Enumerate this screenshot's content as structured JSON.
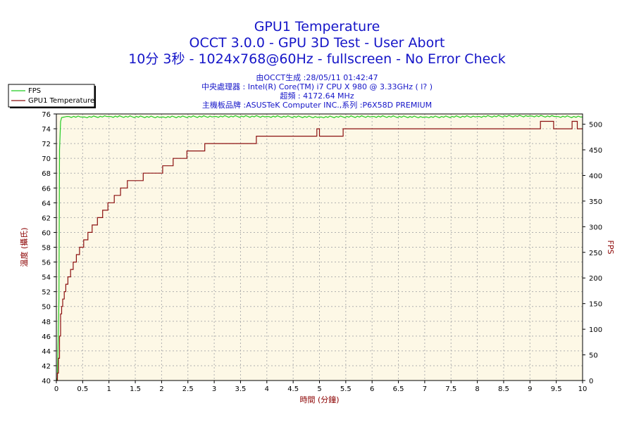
{
  "header": {
    "title": "GPU1 Temperature",
    "subtitle": "OCCT 3.0.0 - GPU 3D Test - User Abort",
    "subtitle2": "10分 3秒 - 1024x768@60Hz - fullscreen - No Error Check",
    "info_lines": [
      "由OCCT生成 :28/05/11 01:42:47",
      "中央處理器 : Intel(R) Core(TM) i7 CPU X 980 @ 3.33GHz (  l? )",
      "超頻 : 4172.64 MHz",
      "主機板品牌 :ASUSTeK Computer INC.,系列 :P6X58D PREMIUM"
    ]
  },
  "colors": {
    "fps": "#22cc22",
    "temperature": "#8b1010",
    "plot_bg": "#fdf8e6",
    "grid": "#b0b0b0",
    "title": "#1515c8"
  },
  "chart_data": {
    "type": "line",
    "xlabel": "時間 (分鐘)",
    "ylabel": "溫度 (攝氏)",
    "y2label": "FPS",
    "xlim": [
      0,
      10
    ],
    "ylim": [
      40,
      76
    ],
    "y2lim": [
      0,
      520
    ],
    "x_ticks": [
      "0",
      "0.5",
      "1",
      "1.5",
      "2",
      "2.5",
      "3",
      "3.5",
      "4",
      "4.5",
      "5",
      "5.5",
      "6",
      "6.5",
      "7",
      "7.5",
      "8",
      "8.5",
      "9",
      "9.5",
      "10"
    ],
    "y_ticks": [
      "40",
      "42",
      "44",
      "46",
      "48",
      "50",
      "52",
      "54",
      "56",
      "58",
      "60",
      "62",
      "64",
      "66",
      "68",
      "70",
      "72",
      "74",
      "76"
    ],
    "y2_ticks": [
      "0",
      "50",
      "100",
      "150",
      "200",
      "250",
      "300",
      "350",
      "400",
      "450",
      "500"
    ],
    "grid": true,
    "legend_position": "top-left",
    "series": [
      {
        "name": "FPS",
        "axis": "right",
        "x": [
          0,
          0.02,
          0.05,
          0.06,
          0.08,
          0.1,
          0.2,
          0.5,
          1,
          2,
          3,
          4,
          5,
          6,
          7,
          8,
          9,
          9.5,
          10
        ],
        "y": [
          0,
          5,
          160,
          450,
          505,
          513,
          515,
          514,
          515,
          514,
          515,
          515,
          514,
          515,
          514,
          515,
          516,
          515,
          514
        ]
      },
      {
        "name": "GPU1 Temperature",
        "axis": "left",
        "x": [
          0,
          0.02,
          0.04,
          0.06,
          0.08,
          0.1,
          0.12,
          0.15,
          0.18,
          0.22,
          0.27,
          0.32,
          0.38,
          0.44,
          0.52,
          0.6,
          0.68,
          0.78,
          0.88,
          0.98,
          1.1,
          1.22,
          1.35,
          1.5,
          1.65,
          1.82,
          2.02,
          2.22,
          2.48,
          2.82,
          3.25,
          3.8,
          4.4,
          4.95,
          5.0,
          5.1,
          5.45,
          5.5,
          6.0,
          7.0,
          8.0,
          9.0,
          9.2,
          9.45,
          9.8,
          9.9,
          10.0
        ],
        "y": [
          40,
          41,
          43,
          46,
          49,
          50,
          51,
          52,
          53,
          54,
          55,
          56,
          57,
          58,
          59,
          60,
          61,
          62,
          63,
          64,
          65,
          66,
          67,
          67,
          68,
          68,
          69,
          70,
          71,
          72,
          72,
          73,
          73,
          74,
          73,
          73,
          74,
          74,
          74,
          74,
          74,
          74,
          75,
          74,
          75,
          74,
          74
        ]
      }
    ]
  }
}
